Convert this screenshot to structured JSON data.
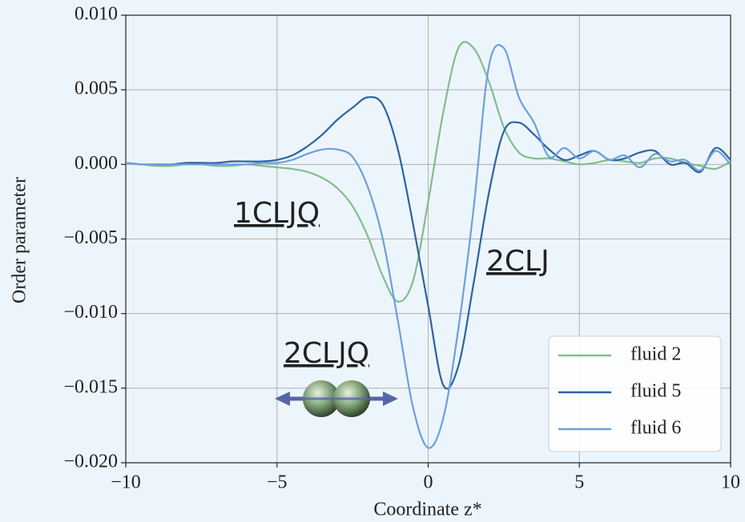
{
  "chart_data": {
    "type": "line",
    "xlabel": "Coordinate z*",
    "ylabel": "Order parameter",
    "x": [
      -10,
      -9.5,
      -9,
      -8.5,
      -8,
      -7.5,
      -7,
      -6.5,
      -6,
      -5.5,
      -5,
      -4.5,
      -4,
      -3.5,
      -3,
      -2.5,
      -2,
      -1.5,
      -1,
      -0.5,
      0,
      0.5,
      1,
      1.5,
      2,
      2.5,
      3,
      3.5,
      4,
      4.5,
      5,
      5.5,
      6,
      6.5,
      7,
      7.5,
      8,
      8.5,
      9,
      9.5,
      10
    ],
    "series": [
      {
        "name": "fluid 2",
        "color": "#82bd8c",
        "values": [
          0.0001,
          0,
          -0.0001,
          -0.0001,
          0,
          0,
          -0.0001,
          -0.0001,
          0,
          -0.0001,
          -0.0002,
          -0.0003,
          -0.0005,
          -0.0009,
          -0.0016,
          -0.0028,
          -0.0048,
          -0.0075,
          -0.0092,
          -0.0078,
          -0.0025,
          0.0035,
          0.0078,
          0.0078,
          0.0056,
          0.0025,
          0.0008,
          0.0004,
          0.0004,
          0.0002,
          0,
          0.0001,
          0.0003,
          0.0002,
          0.0001,
          0.0004,
          0.0004,
          0.0001,
          -0.0001,
          -0.0003,
          0.0002
        ]
      },
      {
        "name": "fluid 5",
        "color": "#2c64a0",
        "values": [
          0.0001,
          0,
          0,
          0,
          0.0001,
          0.0001,
          0.0001,
          0.0002,
          0.0002,
          0.0002,
          0.0003,
          0.0006,
          0.0012,
          0.002,
          0.003,
          0.0038,
          0.0045,
          0.004,
          0.001,
          -0.004,
          -0.0095,
          -0.0148,
          -0.0135,
          -0.008,
          -0.002,
          0.0022,
          0.0028,
          0.002,
          0.001,
          0.0003,
          0.0006,
          0.0009,
          0.0003,
          0.0004,
          0.0008,
          0.0009,
          0,
          0.0001,
          -0.0005,
          0.0011,
          0.0003
        ]
      },
      {
        "name": "fluid 6",
        "color": "#6e9fdb",
        "values": [
          0.0001,
          0,
          0,
          0,
          0,
          0,
          0,
          0,
          0,
          0.0001,
          0.0001,
          0.0003,
          0.0007,
          0.001,
          0.001,
          0.0005,
          -0.0015,
          -0.005,
          -0.0105,
          -0.0163,
          -0.019,
          -0.017,
          -0.011,
          -0.003,
          0.0065,
          0.0078,
          0.0045,
          0.0028,
          0.0005,
          0.0011,
          0.0004,
          0.0009,
          0.0003,
          0.0006,
          -0.0002,
          0.0007,
          0.0002,
          0.0003,
          -0.0004,
          0.0009,
          0
        ]
      }
    ],
    "xlim": [
      -10,
      10
    ],
    "xticks": [
      {
        "value": -10,
        "label": "−10"
      },
      {
        "value": -5,
        "label": "−5"
      },
      0,
      5,
      10
    ],
    "ylim": [
      -0.02,
      0.01
    ],
    "yticks": [
      {
        "value": -0.02,
        "label": "−0.020"
      },
      {
        "value": -0.015,
        "label": "−0.015"
      },
      {
        "value": -0.01,
        "label": "−0.010"
      },
      {
        "value": -0.005,
        "label": "−0.005"
      },
      {
        "value": 0,
        "label": "0.000"
      },
      {
        "value": 0.005,
        "label": "0.005"
      },
      {
        "value": 0.01,
        "label": "0.010"
      }
    ],
    "grid": true,
    "legend": "lower right",
    "annotations": [
      {
        "text": "1CLJQ",
        "color": "#82b88c"
      },
      {
        "text": "2CLJ",
        "color": "#3b5b9e"
      },
      {
        "text": "2CLJQ",
        "color": "#80a8d8"
      }
    ]
  }
}
